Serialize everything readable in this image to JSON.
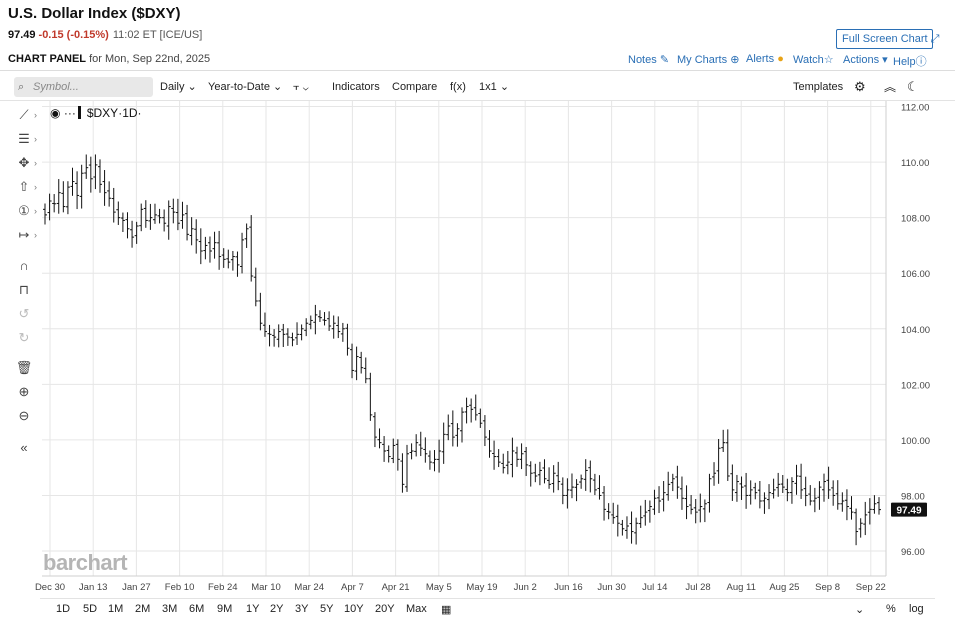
{
  "header": {
    "title": "U.S. Dollar Index ($DXY)",
    "last": "97.49",
    "change": "-0.15 (-0.15%)",
    "time": "11:02 ET [ICE/US]",
    "panel_label": "CHART PANEL",
    "panel_date": "for Mon, Sep 22nd, 2025",
    "full_screen": "Full Screen Chart",
    "links": {
      "notes": "Notes",
      "my_charts": "My Charts",
      "alerts": "Alerts",
      "watch": "Watch",
      "actions": "Actions",
      "help": "Help"
    }
  },
  "toolbar": {
    "symbol_placeholder": "Symbol...",
    "interval": "Daily",
    "period": "Year-to-Date",
    "indicators": "Indicators",
    "compare": "Compare",
    "fx": "f(x)",
    "layout": "1x1",
    "templates": "Templates"
  },
  "legend": {
    "symbol": "$DXY",
    "interval": "1D"
  },
  "watermark": "barchart",
  "bottom_ranges": [
    "1D",
    "5D",
    "1M",
    "2M",
    "3M",
    "6M",
    "9M",
    "1Y",
    "2Y",
    "3Y",
    "5Y",
    "10Y",
    "20Y",
    "Max"
  ],
  "bottom_right": {
    "percent": "%",
    "log": "log"
  },
  "colors": {
    "link": "#2a6fb5",
    "down": "#c0392b",
    "bars": "#111111",
    "grid": "#e6e6e6",
    "badge": "#111111"
  },
  "chart_data": {
    "type": "ohlc",
    "title": "U.S. Dollar Index ($DXY)",
    "interval": "1D",
    "x_tick_labels": [
      "Dec 30",
      "Jan 13",
      "Jan 27",
      "Feb 10",
      "Feb 24",
      "Mar 10",
      "Mar 24",
      "Apr 7",
      "Apr 21",
      "May 5",
      "May 19",
      "Jun 2",
      "Jun 16",
      "Jun 30",
      "Jul 14",
      "Jul 28",
      "Aug 11",
      "Aug 25",
      "Sep 8",
      "Sep 22"
    ],
    "y_tick_labels": [
      "96.00",
      "98.00",
      "100.00",
      "102.00",
      "104.00",
      "106.00",
      "108.00",
      "110.00",
      "112.00"
    ],
    "y_range": [
      95.1,
      112.2
    ],
    "last_price_label": "97.49",
    "grid": true,
    "closes": [
      108.1,
      108.6,
      108.5,
      108.9,
      108.4,
      109.1,
      109.3,
      108.8,
      109.6,
      109.8,
      109.4,
      109.9,
      109.2,
      108.9,
      108.7,
      108.2,
      108.0,
      107.9,
      107.6,
      107.3,
      107.7,
      108.3,
      107.9,
      108.0,
      108.1,
      108.0,
      107.8,
      108.4,
      108.2,
      107.8,
      108.1,
      107.4,
      107.6,
      107.2,
      106.8,
      107.0,
      106.8,
      107.1,
      106.6,
      106.5,
      106.4,
      106.6,
      106.3,
      107.2,
      107.6,
      105.9,
      105.0,
      104.2,
      103.9,
      103.8,
      103.7,
      103.9,
      103.8,
      103.7,
      103.6,
      103.8,
      104.0,
      104.2,
      104.3,
      104.5,
      104.4,
      104.3,
      104.1,
      104.2,
      103.9,
      104.0,
      103.3,
      102.5,
      103.0,
      102.6,
      102.2,
      100.9,
      100.1,
      99.9,
      99.6,
      99.4,
      99.8,
      99.3,
      98.4,
      99.5,
      99.6,
      99.9,
      99.7,
      99.5,
      99.2,
      99.3,
      99.6,
      100.2,
      100.5,
      100.1,
      100.4,
      101.0,
      101.2,
      101.1,
      100.9,
      100.6,
      100.1,
      99.6,
      99.4,
      99.2,
      99.0,
      99.2,
      99.6,
      99.3,
      99.5,
      99.1,
      98.8,
      98.7,
      98.9,
      98.6,
      98.4,
      98.8,
      98.5,
      98.0,
      98.2,
      98.3,
      98.4,
      98.6,
      98.9,
      98.6,
      98.2,
      98.0,
      97.5,
      97.4,
      97.2,
      97.0,
      96.8,
      96.9,
      96.7,
      97.0,
      97.2,
      97.4,
      97.6,
      97.9,
      97.8,
      98.1,
      98.4,
      98.6,
      98.3,
      97.9,
      97.6,
      97.5,
      97.4,
      97.6,
      97.7,
      98.6,
      98.8,
      99.7,
      99.9,
      98.7,
      98.2,
      98.5,
      98.3,
      98.0,
      98.2,
      98.1,
      97.8,
      97.9,
      98.1,
      98.2,
      98.4,
      98.3,
      98.1,
      98.5,
      98.7,
      98.2,
      98.0,
      97.8,
      97.9,
      98.3,
      98.5,
      98.2,
      98.0,
      97.7,
      97.8,
      97.6,
      97.4,
      96.7,
      97.0,
      97.3,
      97.5,
      97.7,
      97.49
    ]
  }
}
